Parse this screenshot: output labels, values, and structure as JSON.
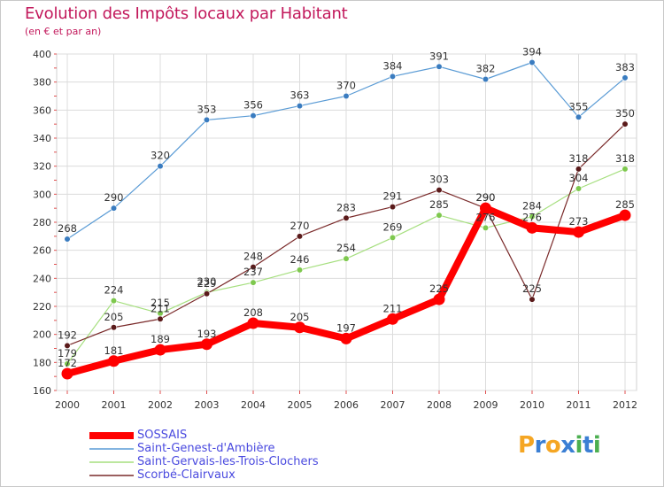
{
  "header": {
    "title": "Evolution des Impôts locaux par Habitant",
    "subtitle": "(en € et par an)"
  },
  "logo": {
    "letters": [
      "P",
      "r",
      "o",
      "x",
      "i",
      "t",
      "i"
    ],
    "colors": [
      "#f5a623",
      "#3b7fd4",
      "#f5a623",
      "#3b7fd4",
      "#4caf50",
      "#3b7fd4",
      "#4caf50"
    ]
  },
  "chart_data": {
    "type": "line",
    "x": [
      "2000",
      "2001",
      "2002",
      "2003",
      "2004",
      "2005",
      "2006",
      "2007",
      "2008",
      "2009",
      "2010",
      "2011",
      "2012"
    ],
    "ylim": [
      160,
      400
    ],
    "yticks": [
      160,
      180,
      200,
      220,
      240,
      260,
      280,
      300,
      320,
      340,
      360,
      380,
      400
    ],
    "grid": true,
    "legend_position": "bottom-left",
    "series": [
      {
        "name": "SOSSAIS",
        "color": "#ff0000",
        "values": [
          172,
          181,
          189,
          193,
          208,
          205,
          197,
          211,
          225,
          290,
          276,
          273,
          285
        ]
      },
      {
        "name": "Saint-Genest-d'Ambière",
        "color": "#5a9bd5",
        "values": [
          268,
          290,
          320,
          353,
          356,
          363,
          370,
          384,
          391,
          382,
          394,
          355,
          383
        ]
      },
      {
        "name": "Saint-Gervais-les-Trois-Clochers",
        "color": "#a6df7f",
        "values": [
          179,
          224,
          215,
          230,
          237,
          246,
          254,
          269,
          285,
          276,
          284,
          304,
          318
        ]
      },
      {
        "name": "Scorbé-Clairvaux",
        "color": "#7a2a2a",
        "values": [
          192,
          205,
          211,
          229,
          248,
          270,
          283,
          291,
          303,
          290,
          225,
          318,
          350
        ]
      }
    ]
  }
}
